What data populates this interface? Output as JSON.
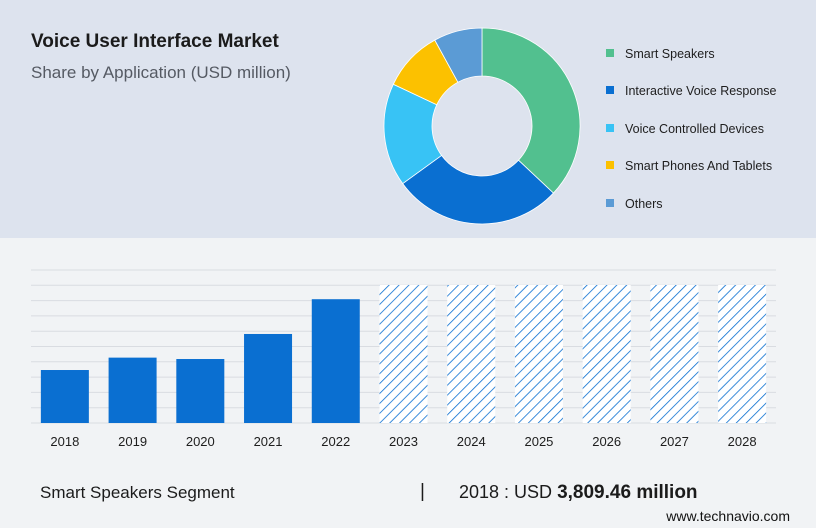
{
  "header": {
    "title": "Voice User Interface Market",
    "subtitle": "Share by Application (USD million)"
  },
  "footer": {
    "segment": "Smart Speakers Segment",
    "separator": "|",
    "value_prefix": "2018 : USD",
    "value": "3,809.46 million"
  },
  "brand": "www.technavio.com",
  "chart_data": [
    {
      "type": "pie",
      "variant": "donut",
      "title": "Share by Application (USD million)",
      "legend_position": "right",
      "categories": [
        "Smart Speakers",
        "Interactive Voice Response",
        "Voice Controlled Devices",
        "Smart Phones And Tablets",
        "Others"
      ],
      "values": [
        37,
        28,
        17,
        10,
        8
      ],
      "colors": [
        "#52c08f",
        "#0a6fd1",
        "#38c3f5",
        "#fcc100",
        "#5b9bd5"
      ]
    },
    {
      "type": "bar",
      "categories": [
        "2018",
        "2019",
        "2020",
        "2021",
        "2022",
        "2023",
        "2024",
        "2025",
        "2026",
        "2027",
        "2028"
      ],
      "values": [
        3809.46,
        4700,
        4600,
        6400,
        8900,
        null,
        null,
        null,
        null,
        null,
        null
      ],
      "forecast_categories": [
        "2023",
        "2024",
        "2025",
        "2026",
        "2027",
        "2028"
      ],
      "forecast_style": "hatched",
      "ylim": [
        0,
        11000
      ],
      "grid": true,
      "colors": {
        "actual": "#0a6fd1",
        "forecast": "#0a6fd1"
      }
    }
  ]
}
